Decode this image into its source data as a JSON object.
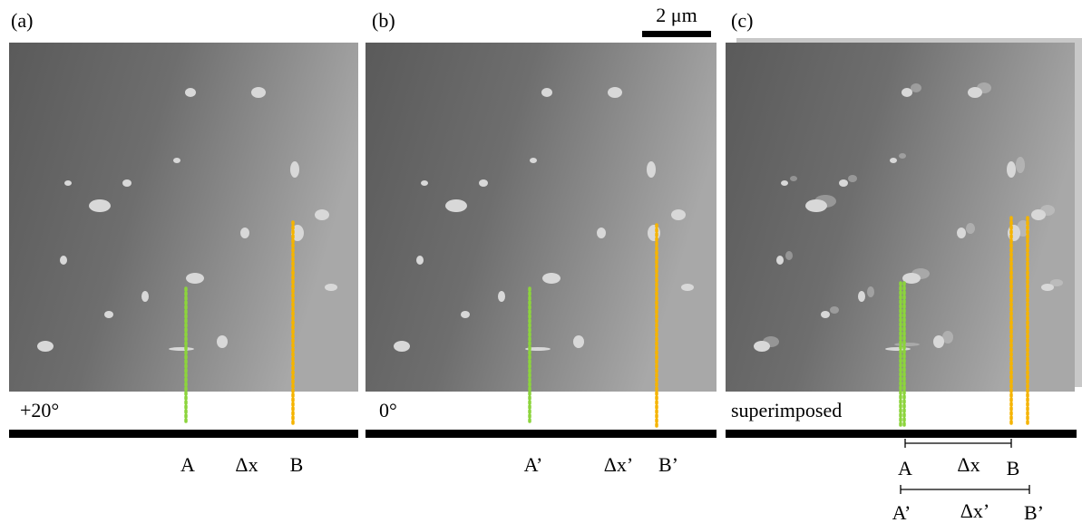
{
  "panels": [
    {
      "label": "(a)",
      "caption": "+20°",
      "annotations": [
        "A",
        "Δx",
        "B"
      ]
    },
    {
      "label": "(b)",
      "caption": "0°",
      "annotations": [
        "A’",
        "Δx’",
        "B’"
      ]
    },
    {
      "label": "(c)",
      "caption": "superimposed",
      "rows": [
        [
          "A",
          "Δx",
          "B"
        ],
        [
          "A’",
          "Δx’",
          "B’"
        ]
      ]
    }
  ],
  "scale_bar": "2 μm"
}
